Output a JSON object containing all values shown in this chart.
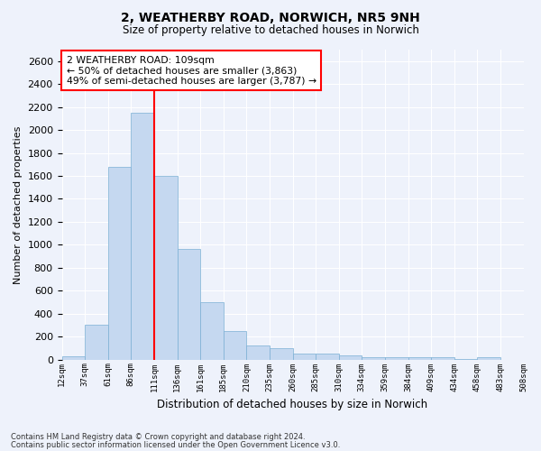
{
  "title": "2, WEATHERBY ROAD, NORWICH, NR5 9NH",
  "subtitle": "Size of property relative to detached houses in Norwich",
  "xlabel": "Distribution of detached houses by size in Norwich",
  "ylabel": "Number of detached properties",
  "bar_color": "#c5d8f0",
  "bar_edge_color": "#7bafd4",
  "bar_heights": [
    25,
    300,
    1680,
    2150,
    1600,
    960,
    500,
    250,
    120,
    100,
    50,
    50,
    35,
    20,
    20,
    20,
    20,
    5,
    20,
    0
  ],
  "x_labels": [
    "12sqm",
    "37sqm",
    "61sqm",
    "86sqm",
    "111sqm",
    "136sqm",
    "161sqm",
    "185sqm",
    "210sqm",
    "235sqm",
    "260sqm",
    "285sqm",
    "310sqm",
    "334sqm",
    "359sqm",
    "384sqm",
    "409sqm",
    "434sqm",
    "458sqm",
    "483sqm",
    "508sqm"
  ],
  "ylim": [
    0,
    2700
  ],
  "yticks": [
    0,
    200,
    400,
    600,
    800,
    1000,
    1200,
    1400,
    1600,
    1800,
    2000,
    2200,
    2400,
    2600
  ],
  "red_line_bin_index": 4,
  "annotation_text": "2 WEATHERBY ROAD: 109sqm\n← 50% of detached houses are smaller (3,863)\n49% of semi-detached houses are larger (3,787) →",
  "footnote1": "Contains HM Land Registry data © Crown copyright and database right 2024.",
  "footnote2": "Contains public sector information licensed under the Open Government Licence v3.0.",
  "bg_color": "#eef2fb",
  "grid_color": "#ffffff"
}
